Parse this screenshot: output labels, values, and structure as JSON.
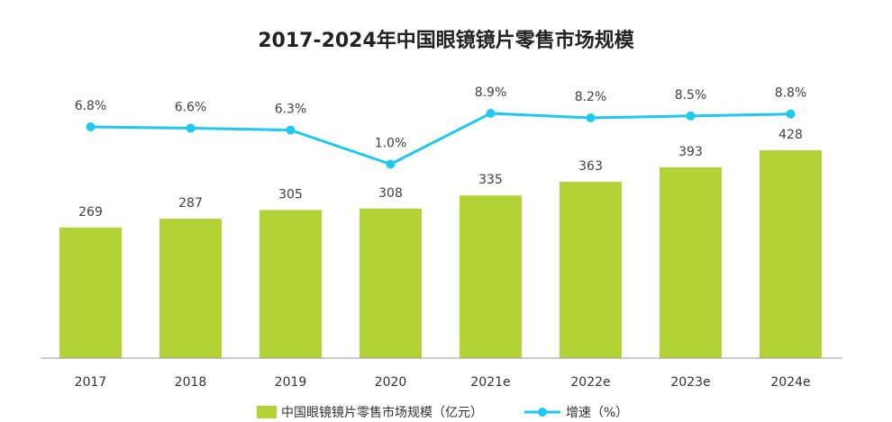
{
  "chart_data": {
    "type": "bar",
    "title": "2017-2024年中国眼镜镜片零售市场规模",
    "categories": [
      "2017",
      "2018",
      "2019",
      "2020",
      "2021e",
      "2022e",
      "2023e",
      "2024e"
    ],
    "series": [
      {
        "name": "中国眼镜镜片零售市场规模（亿元）",
        "kind": "bar",
        "values": [
          269,
          287,
          305,
          308,
          335,
          363,
          393,
          428
        ],
        "labels": [
          "269",
          "287",
          "305",
          "308",
          "335",
          "363",
          "393",
          "428"
        ],
        "color": "#b2d235"
      },
      {
        "name": "增速（%）",
        "kind": "line",
        "values": [
          6.8,
          6.6,
          6.3,
          1.0,
          8.9,
          8.2,
          8.5,
          8.8
        ],
        "labels": [
          "6.8%",
          "6.6%",
          "6.3%",
          "1.0%",
          "8.9%",
          "8.2%",
          "8.5%",
          "8.8%"
        ],
        "color": "#1ec8ef"
      }
    ],
    "legend_position": "bottom",
    "grid": false
  }
}
